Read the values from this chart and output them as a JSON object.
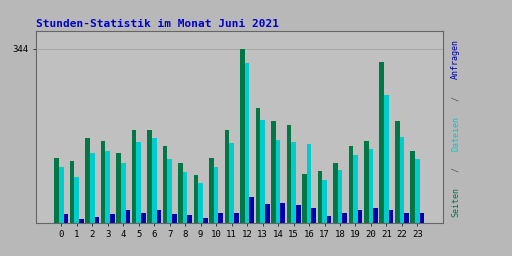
{
  "title": "Stunden-Statistik im Monat Juni 2021",
  "title_color": "#0000cc",
  "ytick_label": "344",
  "ytick_value": 344,
  "ymax": 380,
  "background_color": "#b8b8b8",
  "plot_bg_color": "#c0c0c0",
  "grid_color": "#a8a8a8",
  "bar_width": 0.3,
  "color_seiten": "#007744",
  "color_dateien": "#00cccc",
  "color_anfragen": "#0000aa",
  "hours": [
    0,
    1,
    2,
    3,
    4,
    5,
    6,
    7,
    8,
    9,
    10,
    11,
    12,
    13,
    14,
    15,
    16,
    17,
    18,
    19,
    20,
    21,
    22,
    23
  ],
  "seiten": [
    128,
    122,
    168,
    162,
    138,
    183,
    183,
    152,
    118,
    95,
    128,
    183,
    344,
    228,
    202,
    193,
    97,
    102,
    118,
    152,
    162,
    318,
    202,
    142
  ],
  "dateien": [
    110,
    90,
    138,
    142,
    118,
    160,
    168,
    127,
    100,
    78,
    110,
    157,
    317,
    203,
    163,
    160,
    155,
    84,
    105,
    135,
    145,
    252,
    170,
    126
  ],
  "anfragen": [
    18,
    8,
    12,
    17,
    26,
    20,
    25,
    17,
    15,
    10,
    20,
    20,
    50,
    38,
    40,
    35,
    30,
    14,
    20,
    25,
    30,
    25,
    20,
    20
  ]
}
